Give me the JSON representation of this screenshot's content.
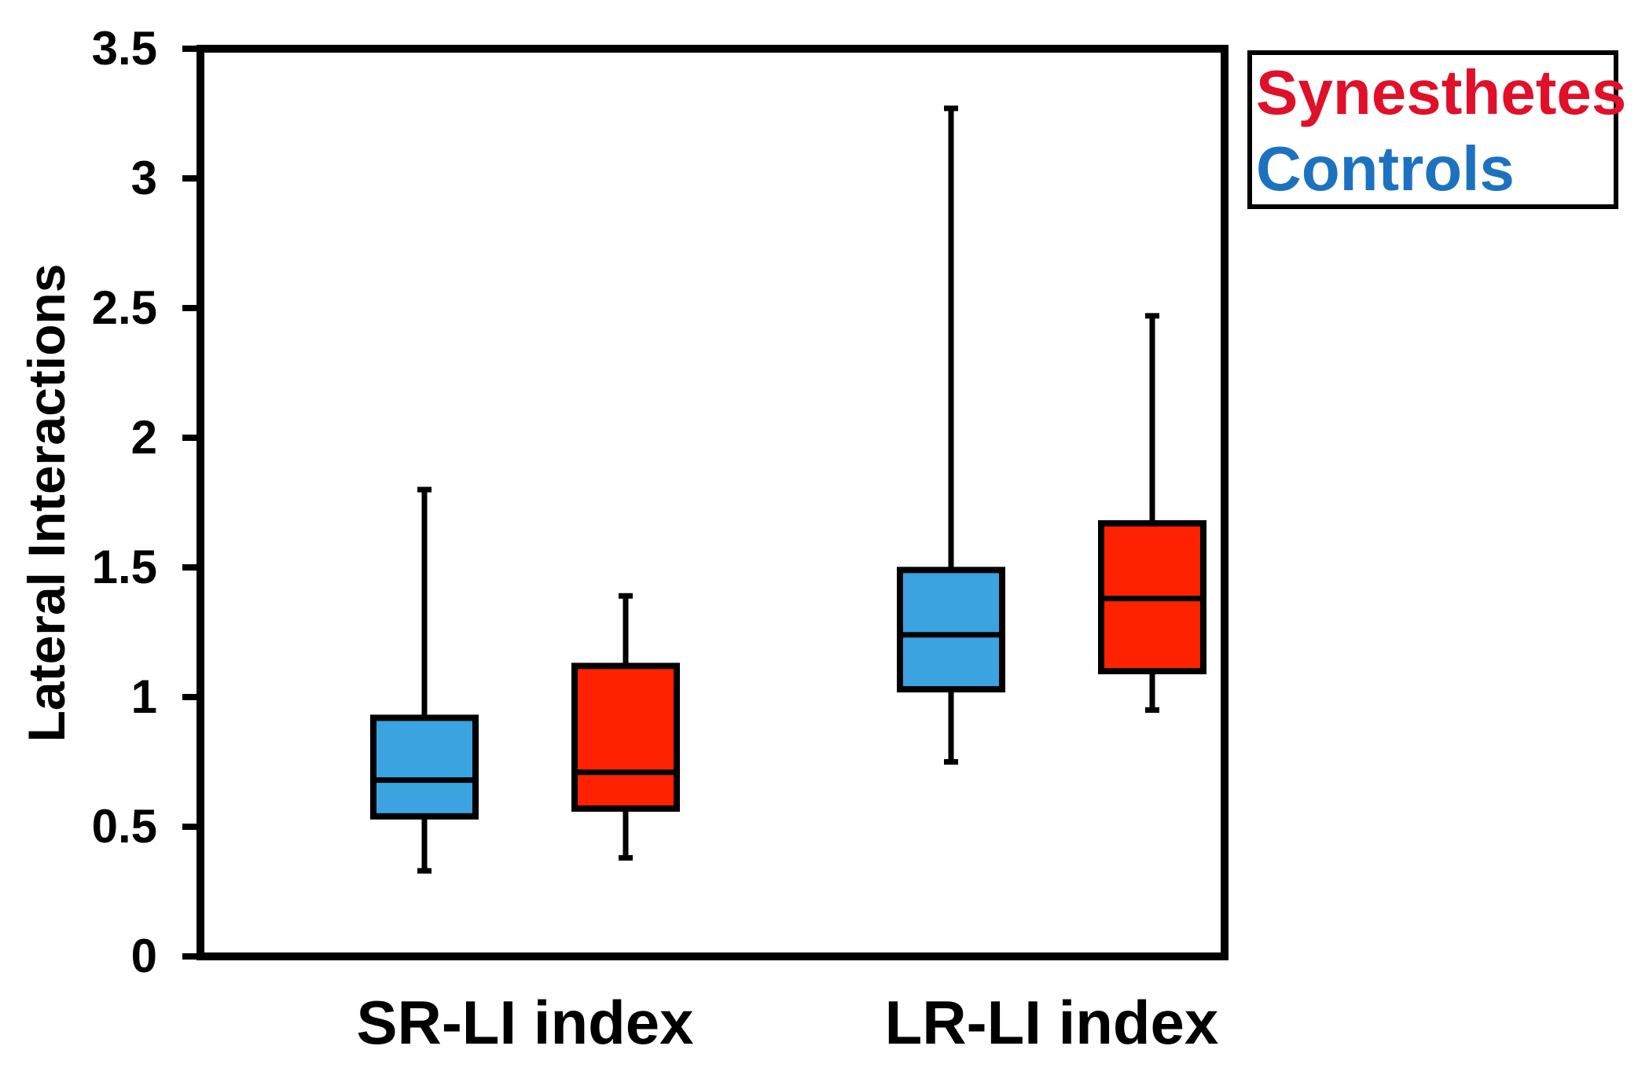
{
  "chart_data": {
    "type": "boxplot",
    "ylabel": "Lateral Interactions",
    "xlabel": "",
    "ylim": [
      0,
      3.5
    ],
    "yticks": [
      {
        "value": 0,
        "label": "0"
      },
      {
        "value": 0.5,
        "label": "0.5"
      },
      {
        "value": 1,
        "label": "1"
      },
      {
        "value": 1.5,
        "label": "1.5"
      },
      {
        "value": 2,
        "label": "2"
      },
      {
        "value": 2.5,
        "label": "2.5"
      },
      {
        "value": 3,
        "label": "3"
      },
      {
        "value": 3.5,
        "label": "3.5"
      }
    ],
    "categories": [
      "SR-LI index",
      "LR-LI index"
    ],
    "series": [
      {
        "name": "Controls",
        "color": "#3aa3e0",
        "text_color": "#1d72c0",
        "boxes": [
          {
            "category": "SR-LI index",
            "whisker_low": 0.33,
            "q1": 0.54,
            "median": 0.68,
            "q3": 0.92,
            "whisker_high": 1.8
          },
          {
            "category": "LR-LI index",
            "whisker_low": 0.75,
            "q1": 1.03,
            "median": 1.24,
            "q3": 1.49,
            "whisker_high": 3.27
          }
        ]
      },
      {
        "name": "Synesthetes",
        "color": "#ff2200",
        "text_color": "#e0102a",
        "boxes": [
          {
            "category": "SR-LI index",
            "whisker_low": 0.38,
            "q1": 0.57,
            "median": 0.71,
            "q3": 1.12,
            "whisker_high": 1.39
          },
          {
            "category": "LR-LI index",
            "whisker_low": 0.95,
            "q1": 1.1,
            "median": 1.38,
            "q3": 1.67,
            "whisker_high": 2.47
          }
        ]
      }
    ],
    "legend": {
      "position": "outside-top-right",
      "entries": [
        "Synesthetes",
        "Controls"
      ]
    },
    "grid": false
  }
}
